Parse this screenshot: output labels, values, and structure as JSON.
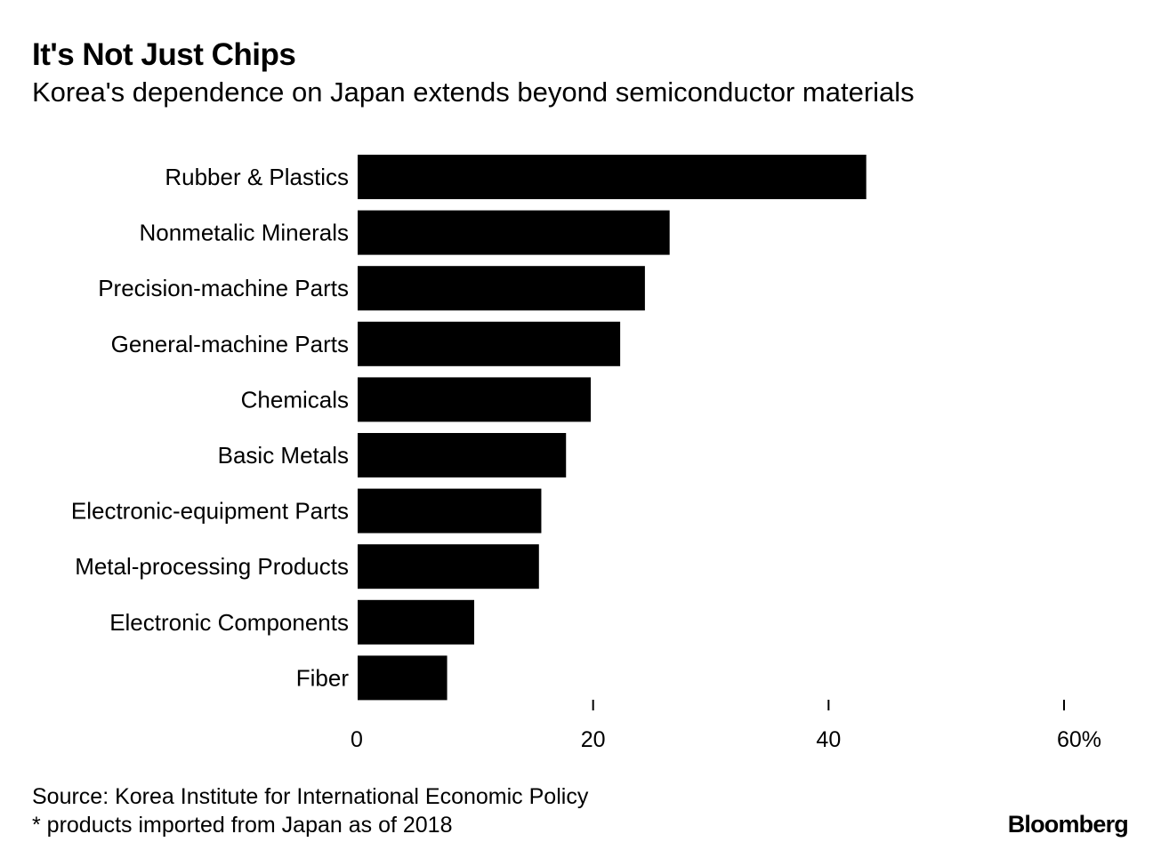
{
  "header": {
    "title": "It's Not Just Chips",
    "subtitle": "Korea's dependence on Japan extends beyond semiconductor materials"
  },
  "footer": {
    "source": "Source: Korea Institute for International Economic Policy",
    "note": "* products imported from Japan as of 2018",
    "brand": "Bloomberg"
  },
  "colors": {
    "bar": "#000000",
    "text": "#000000",
    "background": "#ffffff"
  },
  "chart_data": {
    "type": "bar",
    "orientation": "horizontal",
    "title": "It's Not Just Chips",
    "subtitle": "Korea's dependence on Japan extends beyond semiconductor materials",
    "xlabel": "",
    "ylabel": "",
    "unit": "%",
    "categories": [
      "Rubber & Plastics",
      "Nonmetalic Minerals",
      "Precision-machine Parts",
      "General-machine Parts",
      "Chemicals",
      "Basic Metals",
      "Electronic-equipment Parts",
      "Metal-processing Products",
      "Electronic Components",
      "Fiber"
    ],
    "values": [
      43.2,
      26.5,
      24.4,
      22.3,
      19.8,
      17.7,
      15.6,
      15.4,
      9.9,
      7.6
    ],
    "xlim": [
      0,
      60
    ],
    "xticks": [
      0,
      20,
      40,
      60
    ],
    "xtick_labels": [
      "0",
      "20",
      "40",
      "60%"
    ],
    "grid": false,
    "legend": "none"
  }
}
